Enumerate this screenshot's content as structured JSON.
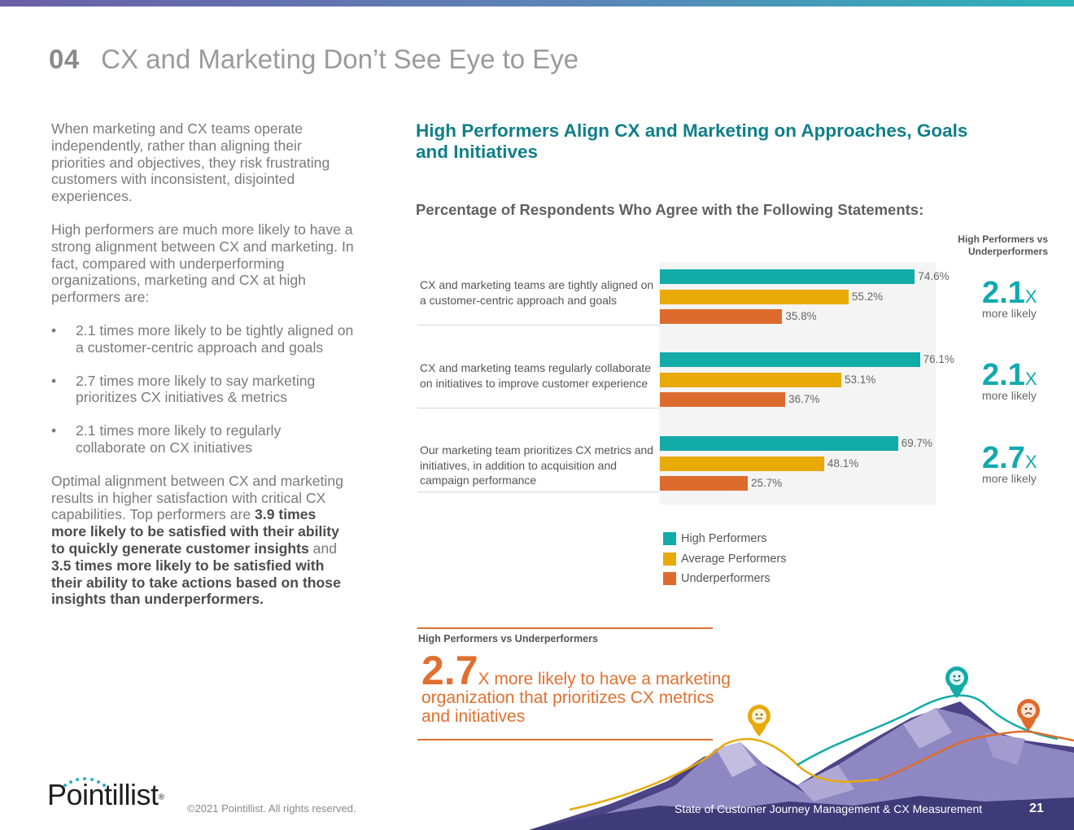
{
  "header": {
    "section_number": "04",
    "section_title": "CX and Marketing Don’t See Eye to Eye"
  },
  "left_column": {
    "paragraph_1": "When marketing and CX teams operate independently, rather than aligning their priorities and objectives, they risk frustrating customers with inconsistent, disjointed experiences.",
    "paragraph_2": "High performers are much more likely to have a strong alignment between CX and marketing. In fact, compared with underperforming organizations, marketing and CX at high performers are:",
    "bullet_symbol": "•",
    "bullets": [
      "2.1 times more likely to be tightly aligned on a customer-centric approach and goals",
      "2.7 times more likely to say marketing prioritizes CX initiatives & metrics",
      "2.1 times more likely to regularly collaborate on CX initiatives"
    ],
    "paragraph_3": {
      "part_1": "Optimal alignment between CX and marketing results in higher satisfaction with critical CX capabilities. Top performers are ",
      "bold_1": "3.9 times more likely to be satisfied with their ability to quickly generate customer insights",
      "part_2": " and ",
      "bold_2": "3.5 times more likely to be satisfied with their ability to take actions based on those insights than underperformers."
    }
  },
  "chart_heading": {
    "title": "High Performers Align CX and Marketing on Approaches, Goals and Initiatives",
    "subtitle": "Percentage of Respondents Who Agree with the Following Statements:",
    "comparison_header": "High Performers vs Underperformers"
  },
  "chart_data": {
    "type": "bar",
    "orientation": "horizontal",
    "title": "Percentage of Respondents Who Agree with the Following Statements:",
    "categories": [
      "CX and marketing teams are tightly aligned on a customer-centric approach and goals",
      "CX and marketing teams regularly collaborate on initiatives to improve customer experience",
      "Our marketing team prioritizes CX metrics and initiatives, in addition to acquisition and campaign performance"
    ],
    "series": [
      {
        "name": "High Performers",
        "color": "#12aba8",
        "values": [
          74.6,
          76.1,
          69.7
        ],
        "labels": [
          "74.6%",
          "76.1%",
          "69.7%"
        ]
      },
      {
        "name": "Average Performers",
        "color": "#e8a909",
        "values": [
          55.2,
          53.1,
          48.1
        ],
        "labels": [
          "55.2%",
          "53.1%",
          "48.1%"
        ]
      },
      {
        "name": "Underperformers",
        "color": "#de6b2e",
        "values": [
          35.8,
          36.7,
          25.7
        ],
        "labels": [
          "35.8%",
          "36.7%",
          "25.7%"
        ]
      }
    ],
    "multipliers": [
      {
        "value": "2.1",
        "unit": "X",
        "label": "more likely"
      },
      {
        "value": "2.1",
        "unit": "X",
        "label": "more likely"
      },
      {
        "value": "2.7",
        "unit": "X",
        "label": "more likely"
      }
    ],
    "xlim": [
      0,
      100
    ],
    "legend_position": "bottom"
  },
  "callout": {
    "header": "High Performers vs Underperformers",
    "big_number": "2.7",
    "text": "X more likely to have a marketing organization that prioritizes CX metrics and initiatives"
  },
  "footer": {
    "logo": "Pointillist",
    "logo_mark": "®",
    "copyright": "©2021 Pointillist. All rights reserved.",
    "report_title": "State of Customer Journey Management & CX Measurement",
    "page_number": "21"
  },
  "colors": {
    "teal": "#12aba8",
    "gold": "#e8a909",
    "orange": "#de6b2e",
    "title_teal": "#0f7f8a"
  }
}
